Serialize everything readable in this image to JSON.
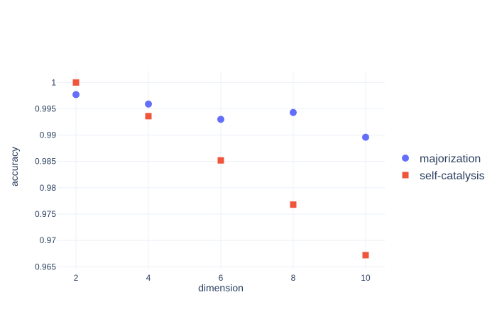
{
  "chart_data": {
    "type": "scatter",
    "title": "",
    "xlabel": "dimension",
    "ylabel": "accuracy",
    "x": [
      2,
      4,
      6,
      8,
      10
    ],
    "xlim": [
      1.47,
      10.53
    ],
    "ylim": [
      0.9645,
      1.0022
    ],
    "xticks": [
      2,
      4,
      6,
      8,
      10
    ],
    "yticks": [
      0.965,
      0.97,
      0.975,
      0.98,
      0.985,
      0.99,
      0.995,
      1
    ],
    "ytick_labels": [
      "0.965",
      "0.97",
      "0.975",
      "0.98",
      "0.985",
      "0.99",
      "0.995",
      "1"
    ],
    "grid": true,
    "legend_position": "right",
    "series": [
      {
        "name": "majorization",
        "marker": "circle",
        "color": "#636efa",
        "values": [
          0.9977,
          0.9959,
          0.993,
          0.9943,
          0.9896
        ]
      },
      {
        "name": "self-catalysis",
        "marker": "square",
        "color": "#ef553b",
        "values": [
          1.0,
          0.9936,
          0.9852,
          0.9768,
          0.9672
        ]
      }
    ]
  }
}
